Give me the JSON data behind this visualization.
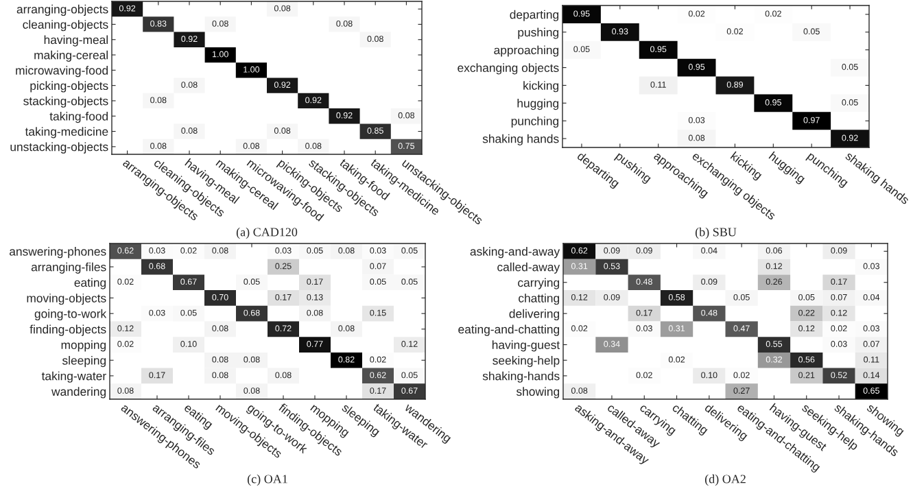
{
  "chart_data": [
    {
      "type": "heatmap",
      "title": "(a) CAD120",
      "data_labels": true,
      "categories": [
        "arranging-objects",
        "cleaning-objects",
        "having-meal",
        "making-cereal",
        "microwaving-food",
        "picking-objects",
        "stacking-objects",
        "taking-food",
        "taking-medicine",
        "unstacking-objects"
      ],
      "y_categories": [
        "arranging-objects",
        "cleaning-objects",
        "having-meal",
        "making-cereal",
        "microwaving-food",
        "picking-objects",
        "stacking-objects",
        "taking-food",
        "taking-medicine",
        "unstacking-objects"
      ],
      "cells": [
        [
          0.92,
          null,
          null,
          null,
          null,
          0.08,
          null,
          null,
          null,
          null
        ],
        [
          null,
          0.83,
          null,
          0.08,
          null,
          null,
          null,
          0.08,
          null,
          null
        ],
        [
          null,
          null,
          0.92,
          null,
          null,
          null,
          null,
          null,
          0.08,
          null
        ],
        [
          null,
          null,
          null,
          1.0,
          null,
          null,
          null,
          null,
          null,
          null
        ],
        [
          null,
          null,
          null,
          null,
          1.0,
          null,
          null,
          null,
          null,
          null
        ],
        [
          null,
          null,
          0.08,
          null,
          null,
          0.92,
          null,
          null,
          null,
          null
        ],
        [
          null,
          0.08,
          null,
          null,
          null,
          null,
          0.92,
          null,
          null,
          null
        ],
        [
          null,
          null,
          null,
          null,
          null,
          null,
          null,
          0.92,
          null,
          0.08
        ],
        [
          null,
          null,
          0.08,
          null,
          null,
          0.08,
          null,
          null,
          0.85,
          null
        ],
        [
          null,
          0.08,
          null,
          null,
          0.08,
          null,
          0.08,
          null,
          null,
          0.75
        ]
      ],
      "cell_labels": [
        [
          "0.92",
          null,
          null,
          null,
          null,
          "0.08",
          null,
          null,
          null,
          null
        ],
        [
          null,
          "0.83",
          null,
          "0.08",
          null,
          null,
          null,
          "0.08",
          null,
          null
        ],
        [
          null,
          null,
          "0.92",
          null,
          null,
          null,
          null,
          null,
          "0.08",
          null
        ],
        [
          null,
          null,
          null,
          "1.00",
          null,
          null,
          null,
          null,
          null,
          null
        ],
        [
          null,
          null,
          null,
          null,
          "1.00",
          null,
          null,
          null,
          null,
          null
        ],
        [
          null,
          null,
          "0.08",
          null,
          null,
          "0.92",
          null,
          null,
          null,
          null
        ],
        [
          null,
          "0.08",
          null,
          null,
          null,
          null,
          "0.92",
          null,
          null,
          null
        ],
        [
          null,
          null,
          null,
          null,
          null,
          null,
          null,
          "0.92",
          null,
          "0.08"
        ],
        [
          null,
          null,
          "0.08",
          null,
          null,
          "0.08",
          null,
          null,
          "0.85",
          null
        ],
        [
          null,
          "0.08",
          null,
          null,
          "0.08",
          null,
          "0.08",
          null,
          null,
          "0.75"
        ]
      ]
    },
    {
      "type": "heatmap",
      "title": "(b) SBU",
      "data_labels": true,
      "categories": [
        "departing",
        "pushing",
        "approaching",
        "exchanging objects",
        "kicking",
        "hugging",
        "punching",
        "shaking hands"
      ],
      "y_categories": [
        "departing",
        "pushing",
        "approaching",
        "exchanging objects",
        "kicking",
        "hugging",
        "punching",
        "shaking hands"
      ],
      "cells": [
        [
          0.95,
          null,
          null,
          0.02,
          null,
          0.02,
          null,
          null
        ],
        [
          null,
          0.93,
          null,
          null,
          0.02,
          null,
          0.05,
          null
        ],
        [
          0.05,
          null,
          0.95,
          null,
          null,
          null,
          null,
          null
        ],
        [
          null,
          null,
          null,
          0.95,
          null,
          null,
          null,
          0.05
        ],
        [
          null,
          null,
          0.11,
          null,
          0.89,
          null,
          null,
          null
        ],
        [
          null,
          null,
          null,
          null,
          null,
          0.95,
          null,
          0.05
        ],
        [
          null,
          null,
          null,
          0.03,
          null,
          null,
          0.97,
          null
        ],
        [
          null,
          null,
          null,
          0.08,
          null,
          null,
          null,
          0.92
        ]
      ]
    },
    {
      "type": "heatmap",
      "title": "(c) OA1",
      "data_labels": true,
      "categories": [
        "answering-phones",
        "arranging-files",
        "eating",
        "moving-objects",
        "going-to-work",
        "finding-objects",
        "mopping",
        "sleeping",
        "taking-water",
        "wandering"
      ],
      "y_categories": [
        "answering-phones",
        "arranging-files",
        "eating",
        "moving-objects",
        "going-to-work",
        "finding-objects",
        "mopping",
        "sleeping",
        "taking-water",
        "wandering"
      ],
      "cells": [
        [
          0.62,
          0.03,
          0.02,
          0.08,
          null,
          0.03,
          0.05,
          0.08,
          0.03,
          0.05
        ],
        [
          null,
          0.68,
          null,
          null,
          null,
          0.25,
          null,
          null,
          0.07,
          null
        ],
        [
          0.02,
          null,
          0.67,
          null,
          0.05,
          null,
          0.17,
          null,
          0.05,
          0.05
        ],
        [
          null,
          null,
          null,
          0.7,
          null,
          0.17,
          0.13,
          null,
          null,
          null
        ],
        [
          null,
          0.03,
          0.05,
          null,
          0.68,
          null,
          0.08,
          null,
          0.15,
          null
        ],
        [
          0.12,
          null,
          null,
          0.08,
          null,
          0.72,
          null,
          0.08,
          null,
          null
        ],
        [
          0.02,
          null,
          0.1,
          null,
          null,
          null,
          0.77,
          null,
          null,
          0.12
        ],
        [
          null,
          null,
          null,
          0.08,
          0.08,
          null,
          null,
          0.82,
          0.02,
          null
        ],
        [
          null,
          0.17,
          null,
          0.08,
          null,
          0.08,
          null,
          null,
          0.62,
          0.05
        ],
        [
          0.08,
          null,
          null,
          null,
          0.08,
          null,
          null,
          null,
          0.17,
          0.67
        ]
      ],
      "cell_labels": [
        [
          "0.62",
          "0.03",
          "0.02",
          "0.08",
          null,
          "0.03",
          "0.05",
          "0.08",
          "0.03",
          "0.05"
        ],
        [
          null,
          "0.68",
          null,
          null,
          null,
          "0.25",
          null,
          null,
          "0.07",
          null
        ],
        [
          "0.02",
          null,
          "0.67",
          null,
          "0.05",
          null,
          "0.17",
          null,
          "0.05",
          "0.05"
        ],
        [
          null,
          null,
          null,
          "0.70",
          null,
          "0.17",
          "0.13",
          null,
          null,
          null
        ],
        [
          null,
          "0.03",
          "0.05",
          null,
          "0.68",
          null,
          "0.08",
          null,
          "0.15",
          null
        ],
        [
          "0.12",
          null,
          null,
          "0.08",
          null,
          "0.72",
          null,
          "0.08",
          null,
          null
        ],
        [
          "0.02",
          null,
          "0.10",
          null,
          null,
          null,
          "0.77",
          null,
          null,
          "0.12"
        ],
        [
          null,
          null,
          null,
          "0.08",
          "0.08",
          null,
          null,
          "0.82",
          "0.02",
          null
        ],
        [
          null,
          "0.17",
          null,
          "0.08",
          null,
          "0.08",
          null,
          null,
          "0.62",
          "0.05"
        ],
        [
          "0.08",
          null,
          null,
          null,
          "0.08",
          null,
          null,
          null,
          "0.17",
          "0.67"
        ]
      ]
    },
    {
      "type": "heatmap",
      "title": "(d) OA2",
      "data_labels": true,
      "categories": [
        "asking-and-away",
        "called-away",
        "carrying",
        "chatting",
        "delivering",
        "eating-and-chatting",
        "having-guest",
        "seeking-help",
        "shaking-hands",
        "showing"
      ],
      "y_categories": [
        "asking-and-away",
        "called-away",
        "carrying",
        "chatting",
        "delivering",
        "eating-and-chatting",
        "having-guest",
        "seeking-help",
        "shaking-hands",
        "showing"
      ],
      "cells": [
        [
          0.62,
          0.09,
          0.09,
          null,
          0.04,
          null,
          0.06,
          null,
          0.09,
          null
        ],
        [
          0.31,
          0.53,
          null,
          null,
          null,
          null,
          0.12,
          null,
          null,
          0.03
        ],
        [
          null,
          null,
          0.48,
          null,
          0.09,
          null,
          0.26,
          null,
          0.17,
          null
        ],
        [
          0.12,
          0.09,
          null,
          0.58,
          null,
          0.05,
          null,
          0.05,
          0.07,
          0.04
        ],
        [
          null,
          null,
          0.17,
          null,
          0.48,
          null,
          null,
          0.22,
          0.12,
          null
        ],
        [
          0.02,
          null,
          0.03,
          0.31,
          null,
          0.47,
          null,
          0.12,
          0.02,
          0.03
        ],
        [
          null,
          0.34,
          null,
          null,
          null,
          null,
          0.55,
          null,
          0.03,
          0.07
        ],
        [
          null,
          null,
          null,
          0.02,
          null,
          null,
          0.32,
          0.56,
          null,
          0.11
        ],
        [
          null,
          null,
          0.02,
          null,
          0.1,
          0.02,
          null,
          0.21,
          0.52,
          0.14
        ],
        [
          0.08,
          null,
          null,
          null,
          null,
          0.27,
          null,
          null,
          null,
          0.65
        ]
      ],
      "cell_labels": [
        [
          "0.62",
          "0.09",
          "0.09",
          null,
          "0.04",
          null,
          "0.06",
          null,
          "0.09",
          null
        ],
        [
          "0.31",
          "0.53",
          null,
          null,
          null,
          null,
          "0.12",
          null,
          null,
          "0.03"
        ],
        [
          null,
          null,
          "0.48",
          null,
          "0.09",
          null,
          "0.26",
          null,
          "0.17",
          null
        ],
        [
          "0.12",
          "0.09",
          null,
          "0.58",
          null,
          "0.05",
          null,
          "0.05",
          "0.07",
          "0.04"
        ],
        [
          null,
          null,
          "0.17",
          null,
          "0.48",
          null,
          null,
          "0.22",
          "0.12",
          null
        ],
        [
          "0.02",
          null,
          "0.03",
          "0.31",
          null,
          "0.47",
          null,
          "0.12",
          "0.02",
          "0.03"
        ],
        [
          null,
          "0.34",
          null,
          null,
          null,
          null,
          "0.55",
          null,
          "0.03",
          "0.07"
        ],
        [
          null,
          null,
          null,
          "0.02",
          null,
          null,
          "0.32",
          "0.56",
          null,
          "0.11"
        ],
        [
          null,
          null,
          "0.02",
          null,
          "0.10",
          "0.02",
          null,
          "0.21",
          "0.52",
          "0.14"
        ],
        [
          "0.08",
          null,
          null,
          null,
          null,
          "0.27",
          null,
          null,
          null,
          "0.65"
        ]
      ]
    }
  ]
}
